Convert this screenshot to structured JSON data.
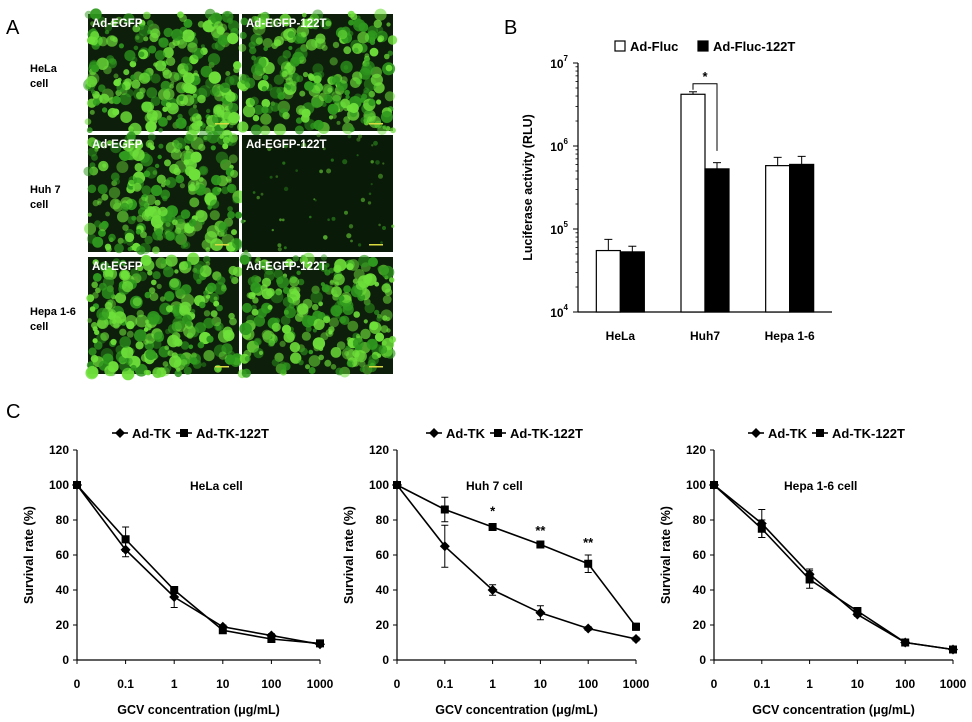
{
  "panel_labels": [
    "A",
    "B",
    "C"
  ],
  "micrographs": {
    "row_labels": [
      [
        "HeLa",
        "cell"
      ],
      [
        "Huh 7",
        "cell"
      ],
      [
        "Hepa 1-6",
        "cell"
      ]
    ],
    "captions": [
      [
        "Ad-EGFP",
        "Ad-EGFP-122T"
      ],
      [
        "Ad-EGFP",
        "Ad-EGFP-122T"
      ],
      [
        "Ad-EGFP",
        "Ad-EGFP-122T"
      ]
    ],
    "colors": {
      "fluor_bright": "#6ee03a",
      "fluor_mid": "#2f9a1e",
      "background": "#0d1f0a",
      "dim_background": "#0a1a08",
      "scale_bar": "#d9d940"
    }
  },
  "chart_data": [
    {
      "type": "bar",
      "panel": "B",
      "categories": [
        "HeLa",
        "Huh7",
        "Hepa 1-6"
      ],
      "series": [
        {
          "name": "Ad-Fluc",
          "values": [
            55000,
            4200000,
            580000
          ],
          "errors": [
            20000,
            300000,
            150000
          ],
          "color": "#ffffff"
        },
        {
          "name": "Ad-Fluc-122T",
          "values": [
            53000,
            530000,
            600000
          ],
          "errors": [
            9000,
            100000,
            150000
          ],
          "color": "#000000"
        }
      ],
      "ylabel": "Luciferase activity (RLU)",
      "yscale": "log",
      "ylim": [
        10000,
        10000000
      ],
      "ytick_labels": [
        {
          "base": "10",
          "exp": "4"
        },
        {
          "base": "10",
          "exp": "5"
        },
        {
          "base": "10",
          "exp": "6"
        },
        {
          "base": "10",
          "exp": "7"
        }
      ],
      "annotations": [
        {
          "text": "*",
          "between": "Huh7"
        }
      ],
      "legend_position": "top"
    },
    {
      "type": "line",
      "panel": "C",
      "title": "HeLa cell",
      "x": [
        "0",
        "0.1",
        "1",
        "10",
        "100",
        "1000"
      ],
      "series": [
        {
          "name": "Ad-TK",
          "marker": "diamond",
          "values": [
            100,
            63,
            36,
            19,
            14,
            9
          ],
          "errors": [
            0,
            4,
            6,
            1,
            1,
            1
          ]
        },
        {
          "name": "Ad-TK-122T",
          "marker": "square",
          "values": [
            100,
            69,
            40,
            17,
            12,
            9.5
          ],
          "errors": [
            0,
            7,
            2,
            1,
            1,
            1
          ]
        }
      ],
      "xlabel": "GCV concentration (μg/mL)",
      "ylabel": "Survival rate (%)",
      "ylim": [
        0,
        120
      ],
      "yticks": [
        0,
        20,
        40,
        60,
        80,
        100,
        120
      ],
      "annotations": []
    },
    {
      "type": "line",
      "panel": "C",
      "title": "Huh 7 cell",
      "x": [
        "0",
        "0.1",
        "1",
        "10",
        "100",
        "1000"
      ],
      "series": [
        {
          "name": "Ad-TK",
          "marker": "diamond",
          "values": [
            100,
            65,
            40,
            27,
            18,
            12
          ],
          "errors": [
            0,
            12,
            3,
            4,
            1,
            1
          ]
        },
        {
          "name": "Ad-TK-122T",
          "marker": "square",
          "values": [
            100,
            86,
            76,
            66,
            55,
            19
          ],
          "errors": [
            0,
            7,
            2,
            1,
            5,
            2
          ]
        }
      ],
      "xlabel": "GCV concentration (μg/mL)",
      "ylabel": "Survival rate (%)",
      "ylim": [
        0,
        120
      ],
      "yticks": [
        0,
        20,
        40,
        60,
        80,
        100,
        120
      ],
      "annotations": [
        {
          "x": "1",
          "text": "*"
        },
        {
          "x": "10",
          "text": "**"
        },
        {
          "x": "100",
          "text": "**"
        }
      ]
    },
    {
      "type": "line",
      "panel": "C",
      "title": "Hepa 1-6 cell",
      "x": [
        "0",
        "0.1",
        "1",
        "10",
        "100",
        "1000"
      ],
      "series": [
        {
          "name": "Ad-TK",
          "marker": "diamond",
          "values": [
            100,
            78,
            49,
            26,
            10,
            6
          ],
          "errors": [
            0,
            8,
            3,
            1,
            1,
            1
          ]
        },
        {
          "name": "Ad-TK-122T",
          "marker": "square",
          "values": [
            100,
            75,
            46,
            28,
            10,
            6
          ],
          "errors": [
            0,
            5,
            5,
            1,
            1,
            1
          ]
        }
      ],
      "xlabel": "GCV concentration (μg/mL)",
      "ylabel": "Survival rate (%)",
      "ylim": [
        0,
        120
      ],
      "yticks": [
        0,
        20,
        40,
        60,
        80,
        100,
        120
      ],
      "annotations": []
    }
  ]
}
